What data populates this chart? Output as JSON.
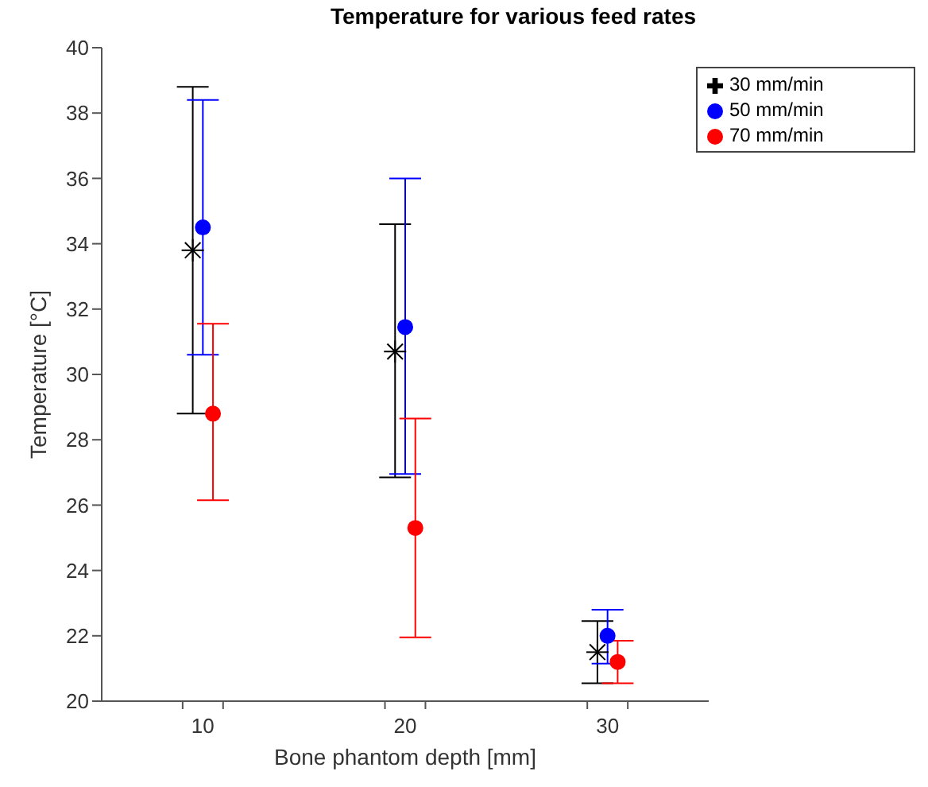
{
  "chart_data": {
    "type": "scatter",
    "title": "Temperature for various feed rates",
    "xlabel": "Bone phantom depth [mm]",
    "ylabel": "Temperature [°C]",
    "xlim": [
      5,
      35
    ],
    "xticks": [
      {
        "value": 9,
        "label": null
      },
      {
        "value": 10,
        "label": "10"
      },
      {
        "value": 11,
        "label": null
      },
      {
        "value": 19,
        "label": null
      },
      {
        "value": 20,
        "label": "20"
      },
      {
        "value": 21,
        "label": null
      },
      {
        "value": 29,
        "label": null
      },
      {
        "value": 30,
        "label": "30"
      },
      {
        "value": 31,
        "label": null
      }
    ],
    "ylim": [
      20,
      40
    ],
    "yticks": [
      20,
      22,
      24,
      26,
      28,
      30,
      32,
      34,
      36,
      38,
      40
    ],
    "legend": "top right",
    "series": [
      {
        "name": "30 mm/min",
        "color": "#000000",
        "marker": "cross",
        "x": [
          9.5,
          19.5,
          29.5
        ],
        "values": [
          33.8,
          30.7,
          21.5
        ],
        "errors": [
          [
            28.8,
            38.8
          ],
          [
            26.85,
            34.6
          ],
          [
            20.55,
            22.45
          ]
        ]
      },
      {
        "name": "50 mm/min",
        "color": "#0000ff",
        "marker": "circle",
        "x": [
          10,
          20,
          30
        ],
        "values": [
          34.5,
          31.45,
          22
        ],
        "errors": [
          [
            30.6,
            38.4
          ],
          [
            26.95,
            36
          ],
          [
            21.15,
            22.8
          ]
        ]
      },
      {
        "name": "70 mm/min",
        "color": "#ff0000",
        "marker": "circle",
        "x": [
          10.5,
          20.5,
          30.5
        ],
        "values": [
          28.8,
          25.3,
          21.2
        ],
        "errors": [
          [
            26.15,
            31.55
          ],
          [
            21.95,
            28.65
          ],
          [
            20.55,
            21.85
          ]
        ]
      }
    ]
  }
}
